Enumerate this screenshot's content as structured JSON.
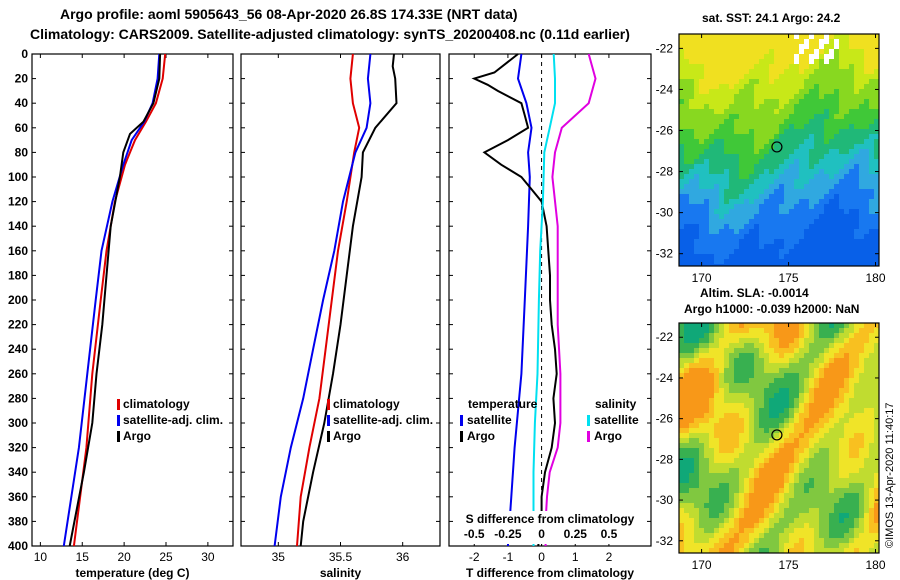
{
  "header": {
    "title_line1": "Argo profile: aoml 5905643_56 08-Apr-2020 26.8S 174.33E (NRT data)",
    "title_line2": "Climatology: CARS2009. Satellite-adjusted climatology: synTS_20200408.nc (0.11d earlier)"
  },
  "side": {
    "sst_title": "sat. SST: 24.1 Argo: 24.2",
    "sla_title_line1": "Altim. SLA: -0.0014",
    "sla_title_line2": "Argo h1000: -0.039 h2000: NaN",
    "credit": "©IMOS 13-Apr-2020 11:40:17"
  },
  "colors": {
    "climatology": "#e00000",
    "satellite": "#0000ee",
    "argo": "#000000",
    "sat_salinity": "#00e0f0",
    "argo_salinity": "#e000e0"
  },
  "chart_data": [
    {
      "type": "line",
      "title": "",
      "xlabel": "temperature (deg C)",
      "ylabel": "",
      "xlim": [
        9,
        33
      ],
      "ylim": [
        400,
        0
      ],
      "xticks": [
        10,
        15,
        20,
        25,
        30
      ],
      "yticks": [
        0,
        20,
        40,
        60,
        80,
        100,
        120,
        140,
        160,
        180,
        200,
        220,
        240,
        260,
        280,
        300,
        320,
        340,
        360,
        380,
        400
      ],
      "legend": [
        "climatology",
        "satellite-adj. clim.",
        "Argo"
      ],
      "legend_position": "lower-right",
      "series": [
        {
          "name": "climatology",
          "color": "#e00000",
          "depth": [
            0,
            20,
            40,
            55,
            70,
            90,
            120,
            160,
            200,
            260,
            320,
            400
          ],
          "value": [
            24.9,
            24.6,
            23.8,
            22.6,
            21.3,
            20.1,
            18.9,
            17.9,
            17.2,
            16.2,
            15.5,
            14.0
          ]
        },
        {
          "name": "satellite-adj. clim.",
          "color": "#0000ee",
          "depth": [
            0,
            20,
            40,
            55,
            70,
            90,
            120,
            160,
            200,
            260,
            320,
            400
          ],
          "value": [
            24.2,
            24.0,
            23.4,
            22.4,
            20.9,
            19.9,
            18.6,
            17.3,
            16.6,
            15.6,
            14.6,
            12.8
          ]
        },
        {
          "name": "Argo",
          "color": "#000000",
          "depth": [
            0,
            20,
            40,
            55,
            65,
            80,
            100,
            140,
            180,
            220,
            260,
            300,
            340,
            400
          ],
          "value": [
            24.3,
            24.2,
            23.5,
            22.3,
            20.7,
            19.9,
            19.5,
            18.4,
            17.9,
            17.4,
            16.7,
            16.2,
            15.2,
            13.5
          ]
        }
      ]
    },
    {
      "type": "line",
      "title": "",
      "xlabel": "salinity",
      "ylabel": "",
      "xlim": [
        34.7,
        36.3
      ],
      "ylim": [
        400,
        0
      ],
      "xticks": [
        35,
        35.5,
        36
      ],
      "legend": [
        "climatology",
        "satellite-adj. clim.",
        "Argo"
      ],
      "legend_position": "lower-right",
      "series": [
        {
          "name": "climatology",
          "color": "#e00000",
          "depth": [
            0,
            20,
            40,
            60,
            80,
            120,
            160,
            200,
            240,
            280,
            320,
            360,
            400
          ],
          "value": [
            35.6,
            35.58,
            35.6,
            35.65,
            35.61,
            35.55,
            35.48,
            35.43,
            35.38,
            35.33,
            35.25,
            35.18,
            35.15
          ]
        },
        {
          "name": "satellite-adj. clim.",
          "color": "#0000ee",
          "depth": [
            0,
            20,
            40,
            60,
            80,
            120,
            160,
            200,
            240,
            280,
            320,
            360,
            400
          ],
          "value": [
            35.74,
            35.72,
            35.74,
            35.71,
            35.62,
            35.52,
            35.45,
            35.36,
            35.28,
            35.2,
            35.1,
            35.02,
            34.97
          ]
        },
        {
          "name": "Argo",
          "color": "#000000",
          "depth": [
            0,
            10,
            20,
            40,
            60,
            80,
            100,
            140,
            180,
            220,
            260,
            300,
            340,
            380,
            400
          ],
          "value": [
            35.93,
            35.92,
            35.94,
            35.95,
            35.78,
            35.68,
            35.67,
            35.6,
            35.55,
            35.5,
            35.44,
            35.37,
            35.28,
            35.2,
            35.18
          ]
        }
      ]
    },
    {
      "type": "line",
      "title": "",
      "xlabel": "T difference from climatology",
      "ylabel": "",
      "xlim": [
        -2.75,
        3.25
      ],
      "ylim": [
        400,
        0
      ],
      "xticks": [
        -2,
        -1,
        0,
        1,
        2
      ],
      "secondary_xlabel": "S difference from climatology",
      "secondary_xlim": [
        -0.6875,
        0.8125
      ],
      "secondary_xticks": [
        -0.5,
        -0.25,
        0,
        0.25,
        0.5
      ],
      "legend": [
        "temperature",
        "satellite",
        "Argo",
        "salinity",
        "satellite",
        "Argo"
      ],
      "series": [
        {
          "name": "temperature satellite",
          "color": "#0000ee",
          "depth": [
            0,
            20,
            40,
            60,
            80,
            100,
            140,
            200,
            260,
            320,
            360,
            400
          ],
          "value": [
            -0.6,
            -0.7,
            -0.45,
            -0.3,
            -0.4,
            -0.35,
            -0.4,
            -0.5,
            -0.6,
            -0.8,
            -0.9,
            -1.0
          ]
        },
        {
          "name": "temperature Argo",
          "color": "#000000",
          "depth": [
            0,
            15,
            20,
            25,
            30,
            40,
            50,
            60,
            70,
            80,
            90,
            100,
            110,
            120,
            140,
            160,
            180,
            200,
            220,
            240,
            260,
            280,
            300,
            320,
            340,
            360,
            380,
            400
          ],
          "value": [
            -0.7,
            -1.4,
            -2.0,
            -1.6,
            -1.3,
            -0.6,
            -0.5,
            -0.4,
            -1.0,
            -1.7,
            -1.2,
            -0.6,
            -0.3,
            0.0,
            0.15,
            0.2,
            0.25,
            0.25,
            0.3,
            0.4,
            0.45,
            0.35,
            0.4,
            0.3,
            0.1,
            0.0,
            0.0,
            -0.1
          ]
        },
        {
          "name": "salinity satellite",
          "color": "#00e0f0",
          "depth": [
            0,
            20,
            40,
            60,
            80,
            120,
            160,
            200,
            260,
            300,
            340,
            400
          ],
          "value": [
            0.09,
            0.1,
            0.1,
            0.06,
            0.02,
            0.01,
            -0.01,
            -0.02,
            -0.03,
            -0.05,
            -0.06,
            -0.06
          ]
        },
        {
          "name": "salinity Argo",
          "color": "#e000e0",
          "depth": [
            0,
            20,
            40,
            60,
            80,
            100,
            140,
            180,
            220,
            260,
            300,
            320,
            340,
            360,
            380,
            400
          ],
          "value": [
            0.35,
            0.4,
            0.35,
            0.15,
            0.1,
            0.08,
            0.12,
            0.12,
            0.12,
            0.14,
            0.14,
            0.12,
            0.06,
            0.04,
            0.03,
            0.03
          ]
        }
      ]
    },
    {
      "type": "heatmap",
      "title": "sat. SST: 24.1 Argo: 24.2",
      "xlim": [
        168.7,
        180.2
      ],
      "ylim": [
        -32.6,
        -21.3
      ],
      "xticks": [
        170,
        175,
        180
      ],
      "yticks": [
        -32,
        -30,
        -28,
        -26,
        -24,
        -22
      ],
      "marker": {
        "lon": 174.33,
        "lat": -26.8
      }
    },
    {
      "type": "heatmap",
      "title": "Altim. SLA: -0.0014",
      "xlim": [
        168.7,
        180.2
      ],
      "ylim": [
        -32.6,
        -21.3
      ],
      "xticks": [
        170,
        175,
        180
      ],
      "yticks": [
        -32,
        -30,
        -28,
        -26,
        -24,
        -22
      ],
      "marker": {
        "lon": 174.33,
        "lat": -26.8
      }
    }
  ]
}
